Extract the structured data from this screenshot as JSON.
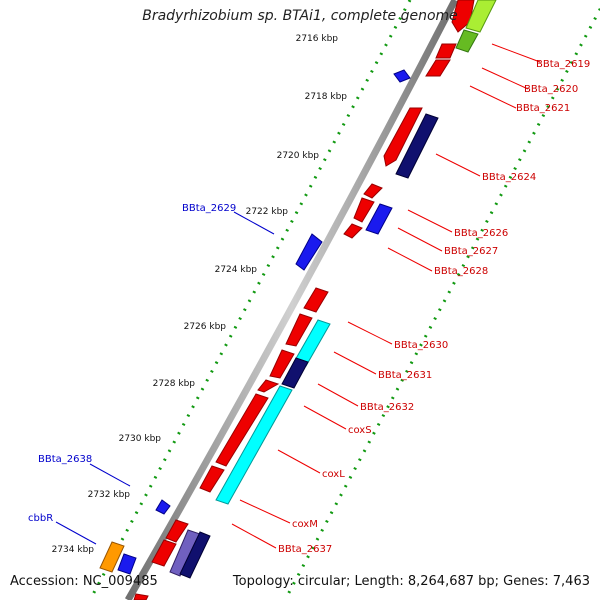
{
  "title": "Bradyrhizobium sp. BTAi1, complete genome",
  "footer": {
    "accession": "Accession: NC_009485",
    "topology": "Topology: circular; Length: 8,264,687 bp; Genes: 7,463"
  },
  "kbp_ticks": [
    "2716 kbp",
    "2718 kbp",
    "2720 kbp",
    "2722 kbp",
    "2724 kbp",
    "2726 kbp",
    "2728 kbp",
    "2730 kbp",
    "2732 kbp",
    "2734 kbp"
  ],
  "right_labels": [
    "BBta_2619",
    "BBta_2620",
    "BBta_2621",
    "BBta_2624",
    "BBta_2626",
    "BBta_2627",
    "BBta_2628",
    "BBta_2630",
    "BBta_2631",
    "BBta_2632",
    "coxS",
    "coxL",
    "coxM",
    "BBta_2637"
  ],
  "left_labels": [
    "BBta_2629",
    "BBta_2638",
    "cbbR"
  ],
  "colors": {
    "forward_red": "#ee0000",
    "dark_blue": "#10106e",
    "blue": "#1a1aee",
    "cyan": "#00ffff",
    "green": "#88dd22",
    "orange": "#ff9900",
    "purple": "#7060c0",
    "tick_green": "#119911",
    "backbone": "#a0a0a0"
  }
}
